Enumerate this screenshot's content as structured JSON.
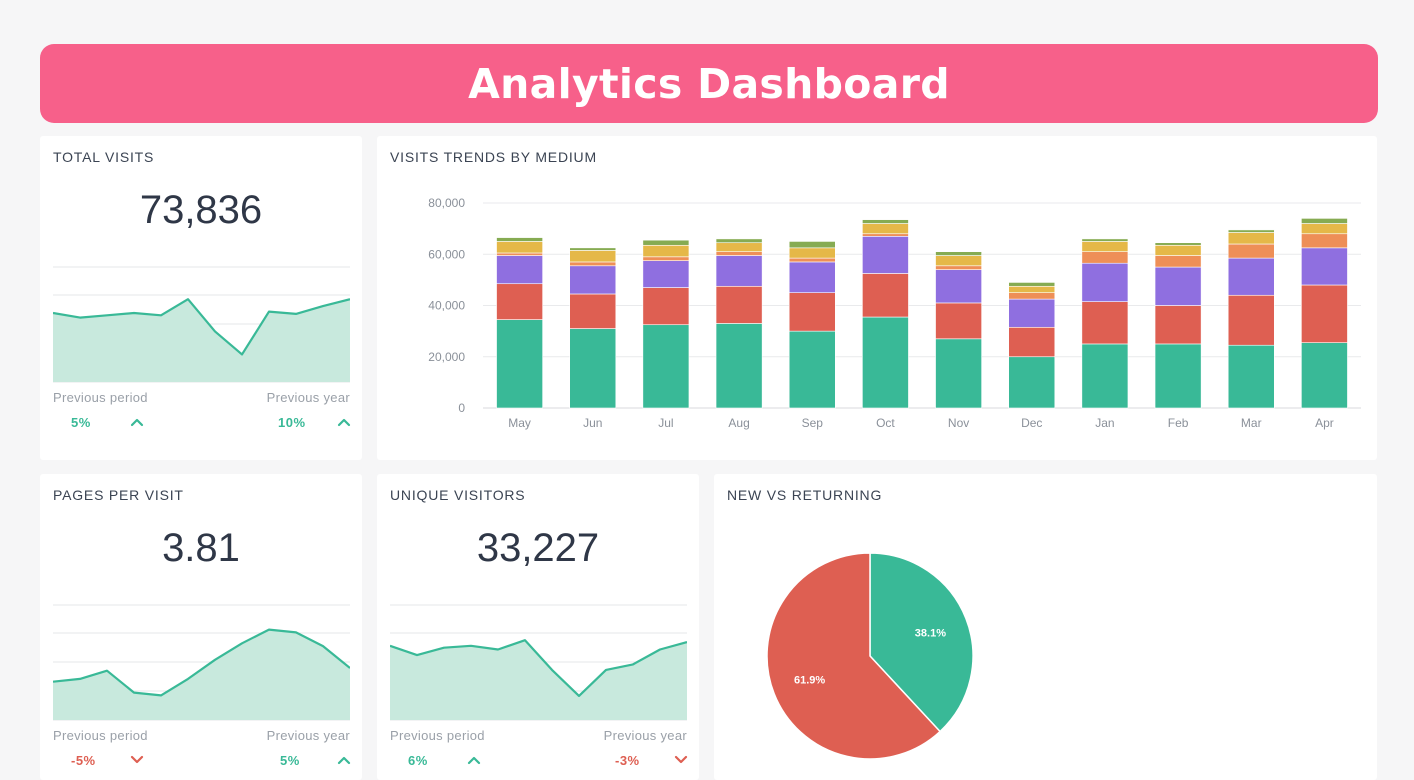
{
  "header": {
    "title": "Analytics Dashboard"
  },
  "colors": {
    "accent": "#f7608a",
    "teal": "#39b997",
    "red": "#de5f52",
    "purple": "#8f6fe0",
    "orange": "#ee8f57",
    "yellow": "#e5b848",
    "green": "#86ab52",
    "spark_fill": "#c8e9dd",
    "up": "#39b997",
    "down": "#de5f52"
  },
  "kpis": {
    "total_visits": {
      "title": "TOTAL VISITS",
      "value": "73,836",
      "prev_period_label": "Previous period",
      "prev_period_value": "5%",
      "prev_period_dir": "up",
      "prev_year_label": "Previous year",
      "prev_year_value": "10%",
      "prev_year_dir": "up"
    },
    "pages_per_visit": {
      "title": "PAGES PER VISIT",
      "value": "3.81",
      "prev_period_label": "Previous period",
      "prev_period_value": "-5%",
      "prev_period_dir": "down",
      "prev_year_label": "Previous year",
      "prev_year_value": "5%",
      "prev_year_dir": "up"
    },
    "unique_visitors": {
      "title": "UNIQUE VISITORS",
      "value": "33,227",
      "prev_period_label": "Previous period",
      "prev_period_value": "6%",
      "prev_period_dir": "up",
      "prev_year_label": "Previous year",
      "prev_year_value": "-3%",
      "prev_year_dir": "down"
    }
  },
  "chart_data": [
    {
      "type": "bar",
      "stacked": true,
      "title": "VISITS TRENDS BY MEDIUM",
      "categories": [
        "May",
        "Jun",
        "Jul",
        "Aug",
        "Sep",
        "Oct",
        "Nov",
        "Dec",
        "Jan",
        "Feb",
        "Mar",
        "Apr"
      ],
      "ylim": [
        0,
        80000
      ],
      "yticks": [
        0,
        20000,
        40000,
        60000,
        80000
      ],
      "ytick_labels": [
        "0",
        "20,000",
        "40,000",
        "60,000",
        "80,000"
      ],
      "grid": true,
      "series": [
        {
          "color": "#39b997",
          "values": [
            34500,
            31000,
            32500,
            33000,
            30000,
            35500,
            27000,
            20000,
            25000,
            25000,
            24500,
            25500
          ]
        },
        {
          "color": "#de5f52",
          "values": [
            14000,
            13500,
            14500,
            14500,
            15000,
            17000,
            14000,
            11500,
            16500,
            15000,
            19500,
            22500
          ]
        },
        {
          "color": "#8f6fe0",
          "values": [
            11000,
            11000,
            10500,
            12000,
            12000,
            14500,
            13000,
            11000,
            15000,
            15000,
            14500,
            14500
          ]
        },
        {
          "color": "#ee8f57",
          "values": [
            1000,
            1500,
            1500,
            1500,
            1500,
            1000,
            1500,
            2500,
            4500,
            4500,
            5500,
            5500
          ]
        },
        {
          "color": "#e5b848",
          "values": [
            4500,
            4500,
            4500,
            3500,
            4000,
            4000,
            4000,
            2500,
            4000,
            4000,
            4500,
            4000
          ]
        },
        {
          "color": "#86ab52",
          "values": [
            1500,
            1000,
            2000,
            1500,
            2500,
            1500,
            1500,
            1500,
            1000,
            1000,
            1000,
            2000
          ]
        }
      ]
    },
    {
      "type": "pie",
      "title": "NEW VS RETURNING",
      "slices": [
        {
          "label": "38.1%",
          "value": 38.1,
          "color": "#39b997"
        },
        {
          "label": "61.9%",
          "value": 61.9,
          "color": "#de5f52"
        }
      ]
    },
    {
      "type": "area",
      "name": "total-visits-sparkline",
      "values": [
        10.0,
        9.0,
        9.5,
        10.0,
        9.5,
        13.0,
        6.0,
        1.0,
        10.3,
        9.8,
        11.5,
        13.0
      ],
      "ylim": [
        -5,
        20
      ]
    },
    {
      "type": "area",
      "name": "pages-per-visit-sparkline",
      "values": [
        6.0,
        6.5,
        8.0,
        4.0,
        3.5,
        6.5,
        10.0,
        13.0,
        15.5,
        15.0,
        12.5,
        8.5
      ],
      "ylim": [
        -1,
        20
      ]
    },
    {
      "type": "area",
      "name": "unique-visitors-sparkline",
      "values": [
        15.0,
        12.5,
        14.5,
        15.0,
        14.0,
        16.5,
        8.5,
        1.5,
        8.5,
        10.0,
        14.0,
        16.0
      ],
      "ylim": [
        -5,
        26
      ]
    }
  ]
}
